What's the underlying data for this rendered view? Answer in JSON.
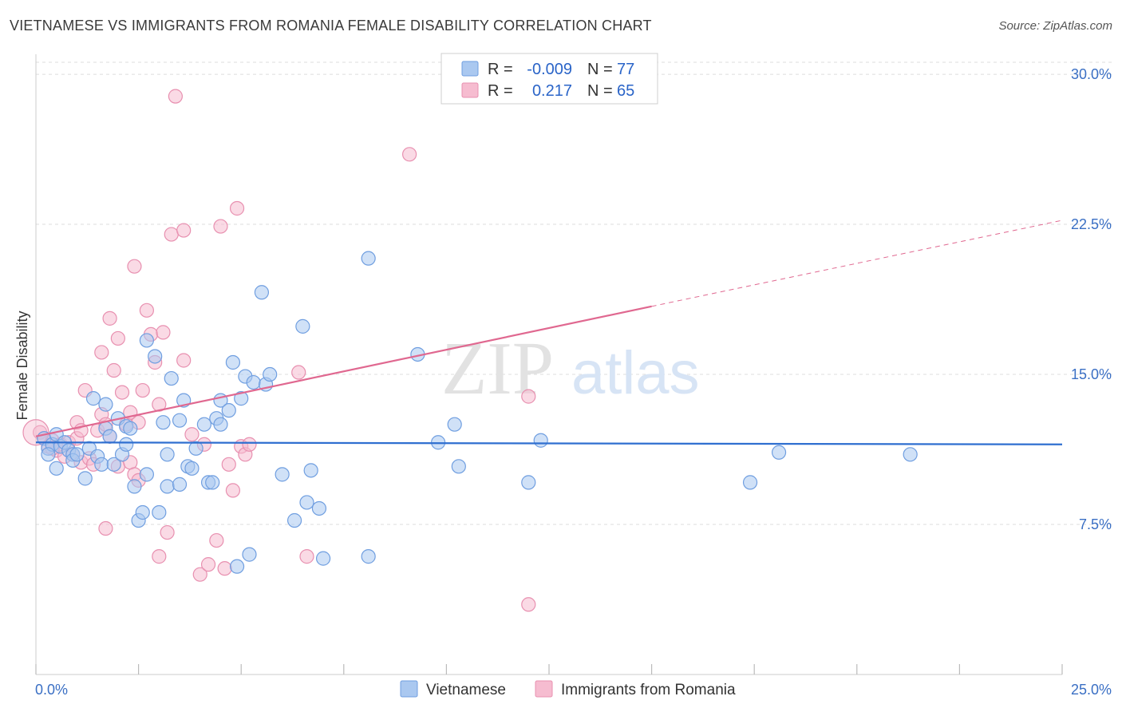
{
  "header": {
    "title": "VIETNAMESE VS IMMIGRANTS FROM ROMANIA FEMALE DISABILITY CORRELATION CHART",
    "source": "Source: ZipAtlas.com"
  },
  "colors": {
    "blue_fill": "#aac8f0",
    "blue_stroke": "#6f9ee0",
    "blue_line": "#2f6fd0",
    "pink_fill": "#f6bcd0",
    "pink_stroke": "#e890b0",
    "pink_line": "#e06890",
    "grid": "#dddddd",
    "tick_label": "#3a6fc4"
  },
  "legend": {
    "rows": [
      {
        "r_label": "R =",
        "r_value": "-0.009",
        "n_label": "N =",
        "n_value": "77"
      },
      {
        "r_label": "R =",
        "r_value": "0.217",
        "n_label": "N =",
        "n_value": "65"
      }
    ]
  },
  "watermark": {
    "zip": "ZIP",
    "atlas": "atlas"
  },
  "chart_data": {
    "type": "scatter",
    "title": "VIETNAMESE VS IMMIGRANTS FROM ROMANIA FEMALE DISABILITY CORRELATION CHART",
    "xlabel": "",
    "ylabel": "Female Disability",
    "xlim": [
      0,
      25
    ],
    "ylim": [
      0,
      31
    ],
    "x_tick_labels": [
      "0.0%",
      "25.0%"
    ],
    "y_ticks": [
      7.5,
      15.0,
      22.5,
      30.0
    ],
    "y_tick_labels": [
      "7.5%",
      "15.0%",
      "22.5%",
      "30.0%"
    ],
    "grid": true,
    "series": [
      {
        "name": "Vietnamese",
        "r": -0.009,
        "n": 77,
        "trend": {
          "x0": 0,
          "y0": 11.6,
          "x1": 25,
          "y1": 11.5
        },
        "points": [
          [
            0.2,
            11.8
          ],
          [
            0.3,
            11.3
          ],
          [
            0.4,
            11.5
          ],
          [
            0.5,
            12.0
          ],
          [
            0.6,
            11.4
          ],
          [
            0.7,
            11.6
          ],
          [
            0.8,
            11.2
          ],
          [
            0.9,
            11.0
          ],
          [
            0.3,
            11.0
          ],
          [
            0.5,
            10.3
          ],
          [
            0.9,
            10.7
          ],
          [
            1.0,
            11.0
          ],
          [
            1.2,
            9.8
          ],
          [
            1.3,
            11.3
          ],
          [
            1.4,
            13.8
          ],
          [
            1.5,
            10.9
          ],
          [
            1.6,
            10.5
          ],
          [
            1.7,
            12.3
          ],
          [
            1.8,
            11.9
          ],
          [
            1.7,
            13.5
          ],
          [
            1.9,
            10.5
          ],
          [
            2.0,
            12.8
          ],
          [
            2.1,
            11.0
          ],
          [
            2.2,
            12.4
          ],
          [
            2.2,
            11.5
          ],
          [
            2.3,
            12.3
          ],
          [
            2.4,
            9.4
          ],
          [
            2.5,
            7.7
          ],
          [
            2.6,
            8.1
          ],
          [
            2.7,
            10.0
          ],
          [
            2.7,
            16.7
          ],
          [
            2.9,
            15.9
          ],
          [
            3.0,
            8.1
          ],
          [
            3.1,
            12.6
          ],
          [
            3.2,
            11.0
          ],
          [
            3.2,
            9.4
          ],
          [
            3.3,
            14.8
          ],
          [
            3.5,
            12.7
          ],
          [
            3.5,
            9.5
          ],
          [
            3.6,
            13.7
          ],
          [
            3.7,
            10.4
          ],
          [
            3.8,
            10.3
          ],
          [
            3.9,
            11.3
          ],
          [
            4.1,
            12.5
          ],
          [
            4.2,
            9.6
          ],
          [
            4.3,
            9.6
          ],
          [
            4.4,
            12.8
          ],
          [
            4.5,
            12.5
          ],
          [
            4.5,
            13.7
          ],
          [
            4.7,
            13.2
          ],
          [
            4.8,
            15.6
          ],
          [
            4.9,
            5.4
          ],
          [
            5.0,
            13.8
          ],
          [
            5.1,
            14.9
          ],
          [
            5.2,
            6.0
          ],
          [
            5.3,
            14.6
          ],
          [
            5.6,
            14.5
          ],
          [
            5.7,
            15.0
          ],
          [
            6.0,
            10.0
          ],
          [
            6.3,
            7.7
          ],
          [
            6.5,
            17.4
          ],
          [
            6.6,
            8.6
          ],
          [
            6.7,
            10.2
          ],
          [
            6.9,
            8.3
          ],
          [
            7.0,
            5.8
          ],
          [
            8.1,
            5.9
          ],
          [
            8.1,
            20.8
          ],
          [
            9.3,
            16.0
          ],
          [
            9.8,
            11.6
          ],
          [
            10.2,
            12.5
          ],
          [
            10.3,
            10.4
          ],
          [
            12.0,
            9.6
          ],
          [
            12.3,
            11.7
          ],
          [
            17.4,
            9.6
          ],
          [
            18.1,
            11.1
          ],
          [
            21.3,
            11.0
          ],
          [
            5.5,
            19.1
          ]
        ]
      },
      {
        "name": "Immigrants from Romania",
        "r": 0.217,
        "n": 65,
        "trend": {
          "x0": 0,
          "y0": 11.9,
          "x1": 15.0,
          "y1": 18.4,
          "x_dash_end": 25,
          "y_dash_end": 22.7
        },
        "points": [
          [
            0.1,
            12.1
          ],
          [
            0.2,
            11.8
          ],
          [
            0.3,
            11.4
          ],
          [
            0.4,
            11.7
          ],
          [
            0.5,
            11.2
          ],
          [
            0.6,
            11.5
          ],
          [
            0.7,
            10.9
          ],
          [
            0.8,
            11.6
          ],
          [
            0.9,
            11.0
          ],
          [
            1.0,
            12.6
          ],
          [
            1.0,
            11.8
          ],
          [
            1.1,
            10.6
          ],
          [
            1.2,
            14.2
          ],
          [
            1.3,
            10.8
          ],
          [
            1.4,
            10.5
          ],
          [
            1.5,
            12.2
          ],
          [
            1.6,
            13.0
          ],
          [
            1.7,
            12.5
          ],
          [
            1.6,
            16.1
          ],
          [
            1.7,
            7.3
          ],
          [
            1.8,
            17.8
          ],
          [
            1.8,
            11.9
          ],
          [
            1.9,
            15.2
          ],
          [
            2.0,
            10.4
          ],
          [
            2.0,
            16.8
          ],
          [
            2.1,
            14.1
          ],
          [
            2.2,
            12.5
          ],
          [
            2.3,
            13.1
          ],
          [
            2.3,
            10.6
          ],
          [
            2.4,
            10.0
          ],
          [
            2.5,
            12.6
          ],
          [
            2.5,
            9.7
          ],
          [
            2.6,
            14.2
          ],
          [
            2.7,
            18.2
          ],
          [
            2.8,
            17.0
          ],
          [
            2.9,
            15.6
          ],
          [
            3.0,
            13.5
          ],
          [
            3.0,
            5.9
          ],
          [
            3.1,
            17.1
          ],
          [
            3.2,
            7.1
          ],
          [
            3.3,
            22.0
          ],
          [
            3.4,
            28.9
          ],
          [
            3.6,
            22.2
          ],
          [
            3.6,
            15.7
          ],
          [
            3.8,
            12.0
          ],
          [
            4.0,
            5.0
          ],
          [
            4.2,
            5.5
          ],
          [
            4.4,
            6.7
          ],
          [
            4.5,
            22.4
          ],
          [
            4.6,
            5.3
          ],
          [
            4.7,
            10.5
          ],
          [
            4.8,
            9.2
          ],
          [
            4.9,
            23.3
          ],
          [
            5.0,
            11.4
          ],
          [
            5.1,
            11.0
          ],
          [
            5.2,
            11.5
          ],
          [
            6.4,
            15.1
          ],
          [
            6.6,
            5.9
          ],
          [
            9.1,
            26.0
          ],
          [
            12.0,
            13.9
          ],
          [
            12.0,
            3.5
          ],
          [
            2.4,
            20.4
          ],
          [
            0.4,
            11.3
          ],
          [
            1.1,
            12.2
          ],
          [
            4.1,
            11.5
          ]
        ]
      }
    ]
  },
  "bottom_legend": {
    "items": [
      {
        "label": "Vietnamese"
      },
      {
        "label": "Immigrants from Romania"
      }
    ]
  }
}
